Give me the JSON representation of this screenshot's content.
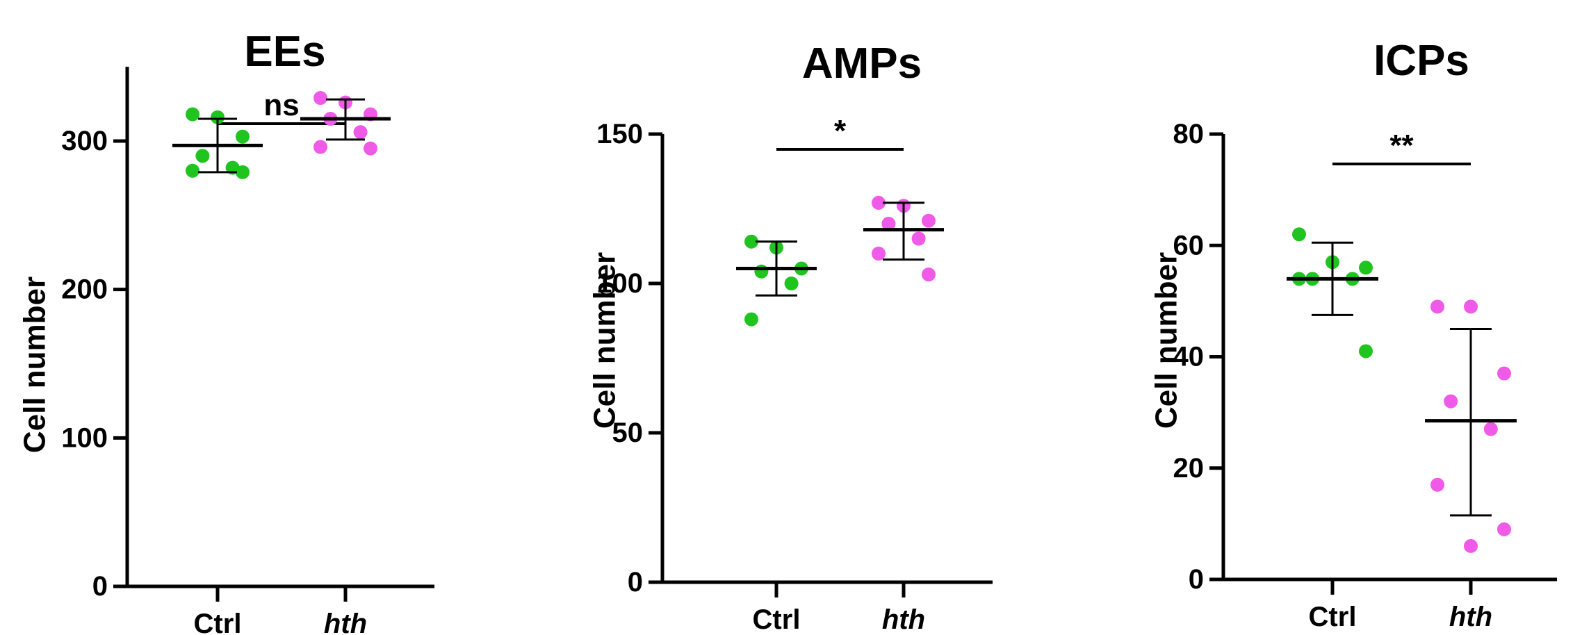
{
  "chart_data": [
    {
      "type": "scatter",
      "title": "EEs",
      "ylabel": "Cell number",
      "xlabel": "",
      "categories": [
        "Ctrl",
        "hth"
      ],
      "category_italic": [
        false,
        true
      ],
      "ylim": [
        0,
        350
      ],
      "yticks": [
        0,
        100,
        200,
        300
      ],
      "significance": "ns",
      "grid": false,
      "series": [
        {
          "name": "Ctrl",
          "color": "#1fc41f",
          "values": [
            318,
            316,
            303,
            290,
            282,
            280,
            279
          ],
          "mean": 297,
          "sd_low": 279,
          "sd_high": 315
        },
        {
          "name": "hth",
          "color": "#ef5ae9",
          "values": [
            329,
            326,
            318,
            315,
            306,
            296,
            295
          ],
          "mean": 315,
          "sd_low": 301,
          "sd_high": 328
        }
      ]
    },
    {
      "type": "scatter",
      "title": "AMPs",
      "ylabel": "Cell number",
      "xlabel": "",
      "categories": [
        "Ctrl",
        "hth"
      ],
      "category_italic": [
        false,
        true
      ],
      "ylim": [
        0,
        150
      ],
      "yticks": [
        0,
        50,
        100,
        150
      ],
      "significance": "*",
      "grid": false,
      "series": [
        {
          "name": "Ctrl",
          "color": "#1fc41f",
          "values": [
            114,
            112,
            105,
            104,
            100,
            88
          ],
          "mean": 105,
          "sd_low": 96,
          "sd_high": 114
        },
        {
          "name": "hth",
          "color": "#ef5ae9",
          "values": [
            127,
            126,
            121,
            120,
            115,
            110,
            103
          ],
          "mean": 118,
          "sd_low": 108,
          "sd_high": 127
        }
      ]
    },
    {
      "type": "scatter",
      "title": "ICPs",
      "ylabel": "Cell number",
      "xlabel": "",
      "categories": [
        "Ctrl",
        "hth"
      ],
      "category_italic": [
        false,
        true
      ],
      "ylim": [
        0,
        80
      ],
      "yticks": [
        0,
        20,
        40,
        60,
        80
      ],
      "significance": "**",
      "grid": false,
      "series": [
        {
          "name": "Ctrl",
          "color": "#1fc41f",
          "values": [
            62,
            57,
            56,
            54,
            54,
            54,
            41
          ],
          "mean": 54,
          "sd_low": 47.5,
          "sd_high": 60.5
        },
        {
          "name": "hth",
          "color": "#ef5ae9",
          "values": [
            49,
            49,
            37,
            32,
            27,
            17,
            9,
            6
          ],
          "mean": 28.5,
          "sd_low": 11.5,
          "sd_high": 45
        }
      ]
    }
  ]
}
